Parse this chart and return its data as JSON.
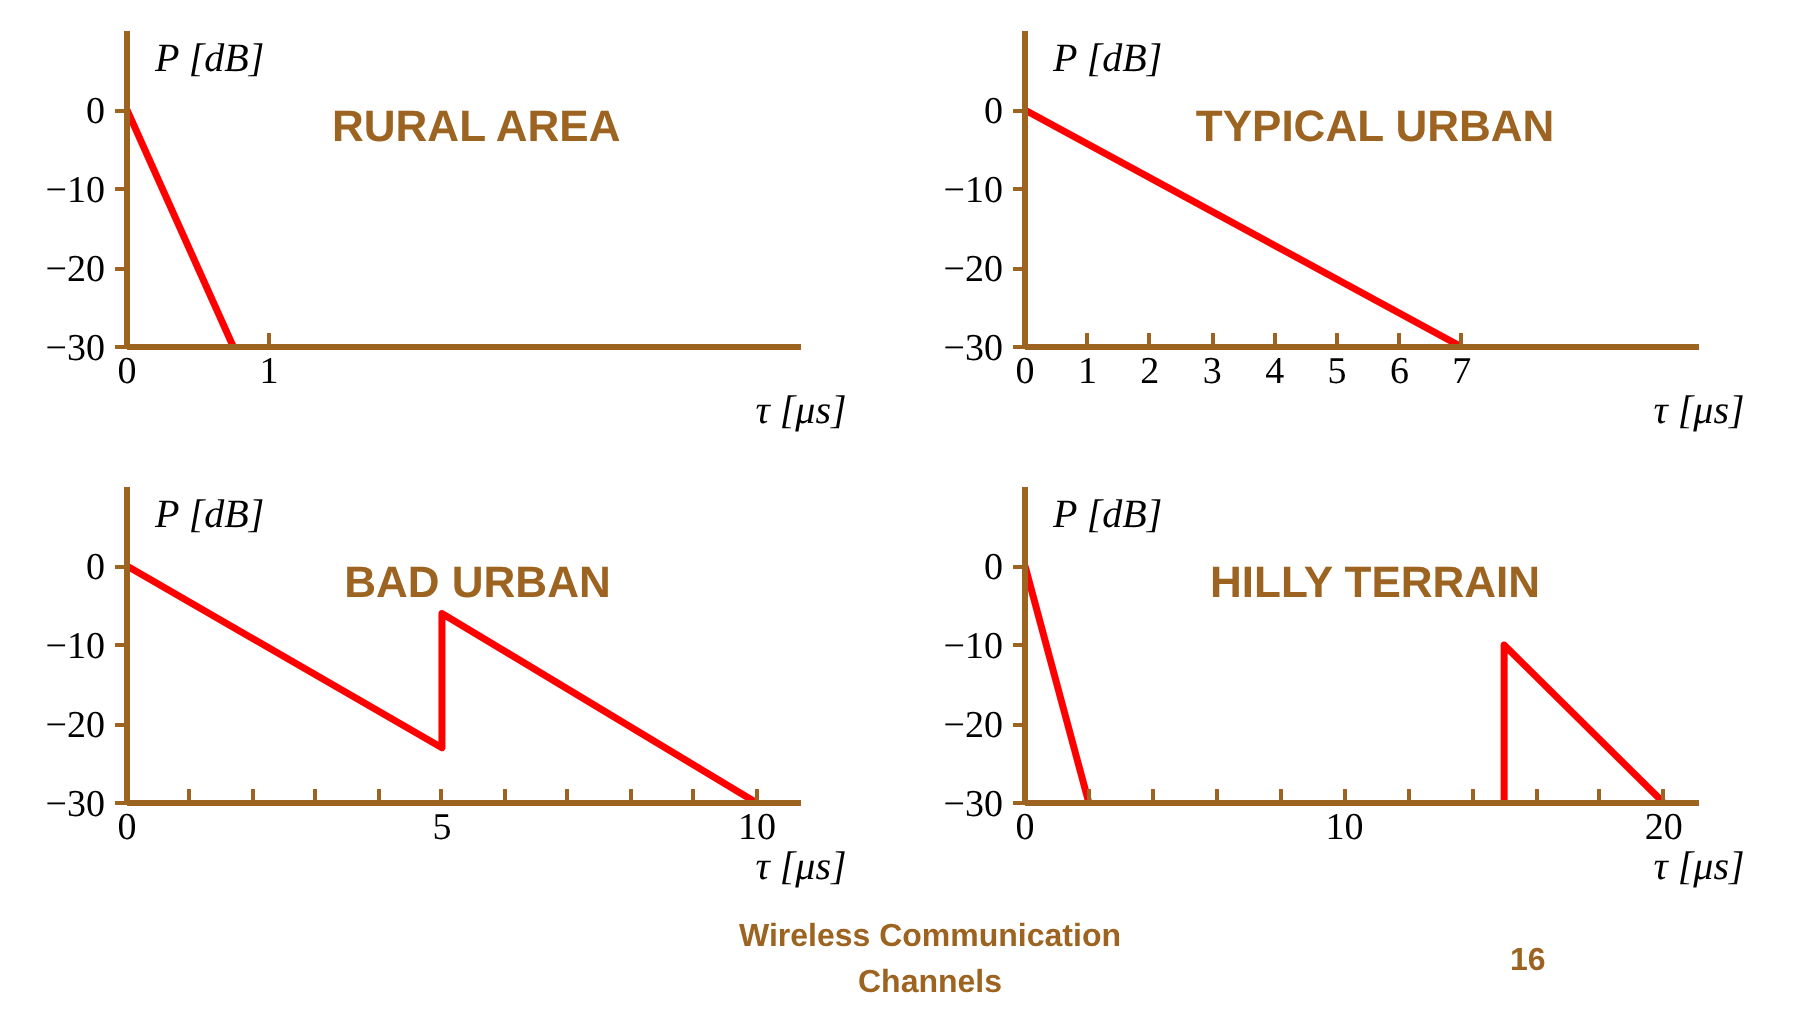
{
  "chart_data": [
    {
      "type": "line",
      "title": "RURAL AREA",
      "xlabel": "τ [μs]",
      "ylabel": "P [dB]",
      "xlim": [
        0,
        4.75
      ],
      "ylim": [
        -30,
        10
      ],
      "xticks": [
        0,
        1
      ],
      "yticks": [
        -30,
        -20,
        -10,
        0
      ],
      "grid": false,
      "series": [
        {
          "color": "#ff0000",
          "x": [
            0,
            0.75
          ],
          "values": [
            0,
            -30
          ]
        }
      ]
    },
    {
      "type": "line",
      "title": "TYPICAL URBAN",
      "xlabel": "τ [μs]",
      "ylabel": "P [dB]",
      "xlim": [
        0,
        10.8
      ],
      "ylim": [
        -30,
        10
      ],
      "xticks": [
        0,
        1,
        2,
        3,
        4,
        5,
        6,
        7
      ],
      "yticks": [
        -30,
        -20,
        -10,
        0
      ],
      "grid": false,
      "series": [
        {
          "color": "#ff0000",
          "x": [
            0,
            7
          ],
          "values": [
            0,
            -30
          ]
        }
      ]
    },
    {
      "type": "line",
      "title": "BAD URBAN",
      "xlabel": "τ [μs]",
      "ylabel": "P [dB]",
      "xlim": [
        0,
        10.7
      ],
      "ylim": [
        -30,
        10
      ],
      "xticks": [
        0,
        {
          "value": 1,
          "label": null
        },
        {
          "value": 2,
          "label": null
        },
        {
          "value": 3,
          "label": null
        },
        {
          "value": 4,
          "label": null
        },
        5,
        {
          "value": 6,
          "label": null
        },
        {
          "value": 7,
          "label": null
        },
        {
          "value": 8,
          "label": null
        },
        {
          "value": 9,
          "label": null
        },
        10
      ],
      "yticks": [
        -30,
        -20,
        -10,
        0
      ],
      "grid": false,
      "series": [
        {
          "color": "#ff0000",
          "x": [
            0,
            5,
            5,
            10
          ],
          "values": [
            0,
            -23,
            -6,
            -30
          ]
        }
      ]
    },
    {
      "type": "line",
      "title": "HILLY TERRAIN",
      "xlabel": "τ [μs]",
      "ylabel": "P [dB]",
      "xlim": [
        0,
        21.1
      ],
      "ylim": [
        -30,
        10
      ],
      "xticks": [
        0,
        {
          "value": 2,
          "label": null
        },
        {
          "value": 4,
          "label": null
        },
        {
          "value": 6,
          "label": null
        },
        {
          "value": 8,
          "label": null
        },
        10,
        {
          "value": 12,
          "label": null
        },
        {
          "value": 14,
          "label": null
        },
        {
          "value": 16,
          "label": null
        },
        {
          "value": 18,
          "label": null
        },
        20
      ],
      "yticks": [
        -30,
        -20,
        -10,
        0
      ],
      "grid": false,
      "series": [
        {
          "color": "#ff0000",
          "x": [
            0,
            2
          ],
          "values": [
            0,
            -30
          ]
        },
        {
          "color": "#ff0000",
          "x": [
            15,
            15,
            20
          ],
          "values": [
            -30,
            -10,
            -30
          ]
        }
      ],
      "annotations": [
        "Wireless Communication Channels",
        "16"
      ]
    }
  ]
}
